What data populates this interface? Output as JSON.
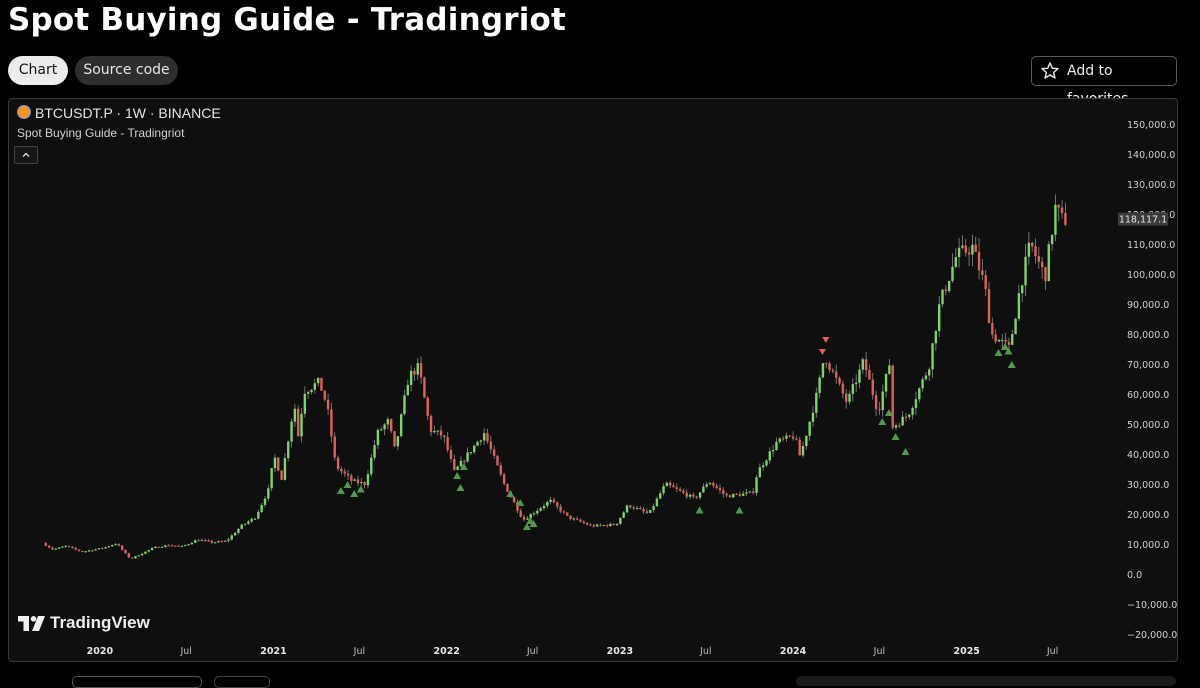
{
  "page": {
    "title": "Spot Buying Guide - Tradingriot",
    "tabs": [
      {
        "label": "Chart",
        "active": true
      },
      {
        "label": "Source code",
        "active": false
      }
    ],
    "favorites_label": "Add to favorites",
    "favorites_icon": "star-icon"
  },
  "chart_header": {
    "symbol": "BTCUSDT.P · 1W · BINANCE",
    "indicator": "Spot Buying Guide - Tradingriot",
    "collapse_icon": "chevron-up-icon",
    "brand": "TradingView"
  },
  "colors": {
    "up": "#7ed36a",
    "down": "#e0605a",
    "buy_signal": "#4f9a4c",
    "sell_signal": "#e0605a",
    "background": "#0f0f0f"
  },
  "chart_data": {
    "type": "candlestick",
    "title": "Spot Buying Guide - Tradingriot",
    "symbol": "BTCUSDT.P",
    "interval": "1W",
    "exchange": "BINANCE",
    "last_price_label": "118,117.1",
    "ylim": [
      -23000,
      153000
    ],
    "y_ticks": [
      150000,
      140000,
      130000,
      120000,
      110000,
      100000,
      90000,
      80000,
      70000,
      60000,
      50000,
      40000,
      30000,
      20000,
      10000,
      0,
      -10000,
      -20000
    ],
    "y_tick_labels": [
      "150,000.0",
      "140,000.0",
      "130,000.0",
      "120,000.0",
      "110,000.0",
      "100,000.0",
      "90,000.0",
      "80,000.0",
      "70,000.0",
      "60,000.0",
      "50,000.0",
      "40,000.0",
      "30,000.0",
      "20,000.0",
      "10,000.0",
      "0.0",
      "−10,000.0",
      "−20,000.0"
    ],
    "x_range": [
      "2019-09-01",
      "2025-09-01"
    ],
    "x_ticks": [
      {
        "date": "2020-01-01",
        "label": "2020",
        "major": true
      },
      {
        "date": "2020-07-01",
        "label": "Jul",
        "major": false
      },
      {
        "date": "2021-01-01",
        "label": "2021",
        "major": true
      },
      {
        "date": "2021-07-01",
        "label": "Jul",
        "major": false
      },
      {
        "date": "2022-01-01",
        "label": "2022",
        "major": true
      },
      {
        "date": "2022-07-01",
        "label": "Jul",
        "major": false
      },
      {
        "date": "2023-01-01",
        "label": "2023",
        "major": true
      },
      {
        "date": "2023-07-01",
        "label": "Jul",
        "major": false
      },
      {
        "date": "2024-01-01",
        "label": "2024",
        "major": true
      },
      {
        "date": "2024-07-01",
        "label": "Jul",
        "major": false
      },
      {
        "date": "2025-01-01",
        "label": "2025",
        "major": true
      },
      {
        "date": "2025-07-01",
        "label": "Jul",
        "major": false
      }
    ],
    "price_path": [
      [
        "2019-09-09",
        10300
      ],
      [
        "2019-10-01",
        8200
      ],
      [
        "2019-10-28",
        9300
      ],
      [
        "2019-12-01",
        7400
      ],
      [
        "2020-01-15",
        8700
      ],
      [
        "2020-02-12",
        10200
      ],
      [
        "2020-03-12",
        5000
      ],
      [
        "2020-04-01",
        6500
      ],
      [
        "2020-05-01",
        8800
      ],
      [
        "2020-06-01",
        9600
      ],
      [
        "2020-07-01",
        9200
      ],
      [
        "2020-08-01",
        11500
      ],
      [
        "2020-09-01",
        10500
      ],
      [
        "2020-10-01",
        11000
      ],
      [
        "2020-11-01",
        16000
      ],
      [
        "2020-12-01",
        19000
      ],
      [
        "2020-12-31",
        29000
      ],
      [
        "2021-01-08",
        40000
      ],
      [
        "2021-01-25",
        32000
      ],
      [
        "2021-02-21",
        57000
      ],
      [
        "2021-02-28",
        45000
      ],
      [
        "2021-03-14",
        61000
      ],
      [
        "2021-04-14",
        64000
      ],
      [
        "2021-05-01",
        56000
      ],
      [
        "2021-05-19",
        36000
      ],
      [
        "2021-06-22",
        31000
      ],
      [
        "2021-07-20",
        30000
      ],
      [
        "2021-08-15",
        47000
      ],
      [
        "2021-09-07",
        51000
      ],
      [
        "2021-09-21",
        41000
      ],
      [
        "2021-10-20",
        66000
      ],
      [
        "2021-11-10",
        69000
      ],
      [
        "2021-12-04",
        48000
      ],
      [
        "2022-01-01",
        46000
      ],
      [
        "2022-01-24",
        34000
      ],
      [
        "2022-03-28",
        47000
      ],
      [
        "2022-05-09",
        30000
      ],
      [
        "2022-06-18",
        18000
      ],
      [
        "2022-07-15",
        21000
      ],
      [
        "2022-08-14",
        24500
      ],
      [
        "2022-09-20",
        19000
      ],
      [
        "2022-11-09",
        16000
      ],
      [
        "2022-12-31",
        16500
      ],
      [
        "2023-01-25",
        23000
      ],
      [
        "2023-03-10",
        20000
      ],
      [
        "2023-04-14",
        30000
      ],
      [
        "2023-06-15",
        25000
      ],
      [
        "2023-07-14",
        31000
      ],
      [
        "2023-08-20",
        26000
      ],
      [
        "2023-10-15",
        27000
      ],
      [
        "2023-10-25",
        34000
      ],
      [
        "2023-12-05",
        44000
      ],
      [
        "2024-01-11",
        46000
      ],
      [
        "2024-01-23",
        39000
      ],
      [
        "2024-02-29",
        61000
      ],
      [
        "2024-03-14",
        73000
      ],
      [
        "2024-05-01",
        57000
      ],
      [
        "2024-06-05",
        71000
      ],
      [
        "2024-07-05",
        54000
      ],
      [
        "2024-07-29",
        70000
      ],
      [
        "2024-08-05",
        49000
      ],
      [
        "2024-09-06",
        53000
      ],
      [
        "2024-10-20",
        69000
      ],
      [
        "2024-11-12",
        90000
      ],
      [
        "2024-12-17",
        106000
      ],
      [
        "2025-01-20",
        109000
      ],
      [
        "2025-02-15",
        96000
      ],
      [
        "2025-03-01",
        80000
      ],
      [
        "2025-04-08",
        75000
      ],
      [
        "2025-05-01",
        96000
      ],
      [
        "2025-05-22",
        110000
      ],
      [
        "2025-06-22",
        99000
      ],
      [
        "2025-07-14",
        122000
      ],
      [
        "2025-07-28",
        118117
      ]
    ],
    "buy_signals": [
      {
        "date": "2021-05-23",
        "price": 31000
      },
      {
        "date": "2021-06-06",
        "price": 33000
      },
      {
        "date": "2021-06-20",
        "price": 30000
      },
      {
        "date": "2021-07-04",
        "price": 31500
      },
      {
        "date": "2022-01-23",
        "price": 36000
      },
      {
        "date": "2022-02-06",
        "price": 39000
      },
      {
        "date": "2022-01-30",
        "price": 32000
      },
      {
        "date": "2022-05-15",
        "price": 30000
      },
      {
        "date": "2022-06-05",
        "price": 27000
      },
      {
        "date": "2022-06-19",
        "price": 19000
      },
      {
        "date": "2022-07-03",
        "price": 20000
      },
      {
        "date": "2022-06-26",
        "price": 21000
      },
      {
        "date": "2023-06-18",
        "price": 24500
      },
      {
        "date": "2023-09-10",
        "price": 24500
      },
      {
        "date": "2024-07-07",
        "price": 54000
      },
      {
        "date": "2024-07-21",
        "price": 57000
      },
      {
        "date": "2024-08-04",
        "price": 49000
      },
      {
        "date": "2024-08-25",
        "price": 44000
      },
      {
        "date": "2025-03-09",
        "price": 77000
      },
      {
        "date": "2025-03-23",
        "price": 79000
      },
      {
        "date": "2025-04-06",
        "price": 73000
      },
      {
        "date": "2025-03-30",
        "price": 77500
      }
    ],
    "sell_signals": [
      {
        "date": "2024-03-10",
        "price": 76000
      },
      {
        "date": "2024-03-03",
        "price": 72000
      }
    ]
  }
}
